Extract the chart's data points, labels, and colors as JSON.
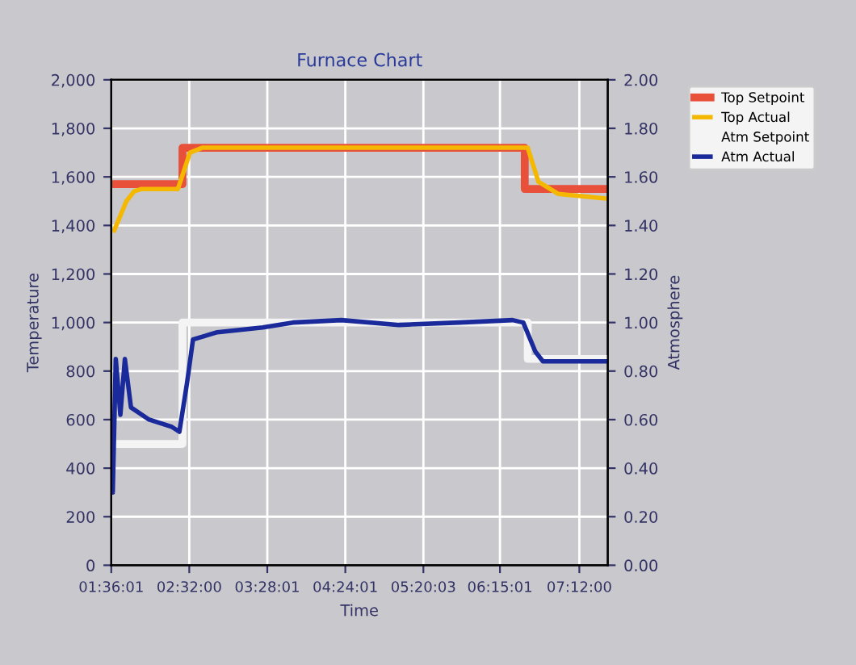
{
  "chart_data": {
    "type": "line",
    "title": "Furnace Chart",
    "xlabel": "Time",
    "ylabel": "Temperature",
    "y2label": "Atmosphere",
    "xlim": [
      1.6003,
      7.54
    ],
    "xticks": [
      {
        "value": 1.6003,
        "label": "01:36:01"
      },
      {
        "value": 2.5333,
        "label": "02:32:00"
      },
      {
        "value": 3.4669,
        "label": "03:28:01"
      },
      {
        "value": 4.4003,
        "label": "04:24:01"
      },
      {
        "value": 5.3342,
        "label": "05:20:03"
      },
      {
        "value": 6.2503,
        "label": "06:15:01"
      },
      {
        "value": 7.2,
        "label": "07:12:00"
      }
    ],
    "ylim": [
      0,
      2000
    ],
    "yticks": [
      0,
      {
        "value": 200,
        "label": "200"
      },
      400,
      600,
      800,
      {
        "value": 1000,
        "label": "1,000"
      },
      {
        "value": 1200,
        "label": "1,200"
      },
      {
        "value": 1400,
        "label": "1,400"
      },
      {
        "value": 1600,
        "label": "1,600"
      },
      {
        "value": 1800,
        "label": "1,800"
      },
      {
        "value": 2000,
        "label": "2,000"
      }
    ],
    "y2lim": [
      0,
      2
    ],
    "y2ticks": [
      {
        "value": 0,
        "label": "0.00"
      },
      {
        "value": 0.2,
        "label": "0.20"
      },
      {
        "value": 0.4,
        "label": "0.40"
      },
      {
        "value": 0.6,
        "label": "0.60"
      },
      {
        "value": 0.8,
        "label": "0.80"
      },
      {
        "value": 1.0,
        "label": "1.00"
      },
      {
        "value": 1.2,
        "label": "1.20"
      },
      {
        "value": 1.4,
        "label": "1.40"
      },
      {
        "value": 1.6,
        "label": "1.60"
      },
      {
        "value": 1.8,
        "label": "1.80"
      },
      {
        "value": 2.0,
        "label": "2.00"
      }
    ],
    "grid": true,
    "legend": "right",
    "series": [
      {
        "name": "Top Setpoint",
        "type": "step",
        "color": "#e8503a",
        "x": [
          1.6003,
          2.452,
          6.547,
          7.54
        ],
        "values": [
          1570,
          1720,
          1550,
          1550
        ]
      },
      {
        "name": "Top Actual",
        "color": "#f5b800",
        "x": [
          1.636,
          1.781,
          1.872,
          1.962,
          2.397,
          2.542,
          2.687,
          6.583,
          6.71,
          6.945,
          7.54
        ],
        "values": [
          1380,
          1500,
          1540,
          1550,
          1550,
          1700,
          1720,
          1720,
          1580,
          1530,
          1510
        ]
      },
      {
        "name": "Atm Setpoint",
        "type": "step",
        "axis": "y2",
        "color": "#f4f4f4",
        "x": [
          1.636,
          2.452,
          6.583,
          7.54
        ],
        "values": [
          0.5,
          1.0,
          0.85,
          0.85
        ]
      },
      {
        "name": "Atm Actual",
        "axis": "y2",
        "color": "#1a2a9a",
        "x": [
          1.6003,
          1.618,
          1.654,
          1.709,
          1.763,
          1.836,
          2.053,
          2.325,
          2.415,
          2.506,
          2.578,
          2.868,
          3.412,
          3.774,
          4.354,
          5.043,
          5.768,
          6.402,
          6.529,
          6.674,
          6.764,
          7.54
        ],
        "values": [
          0.43,
          0.3,
          0.85,
          0.62,
          0.85,
          0.65,
          0.6,
          0.57,
          0.55,
          0.75,
          0.93,
          0.96,
          0.98,
          1.0,
          1.01,
          0.99,
          1.0,
          1.01,
          1.0,
          0.88,
          0.84,
          0.84
        ]
      }
    ]
  }
}
